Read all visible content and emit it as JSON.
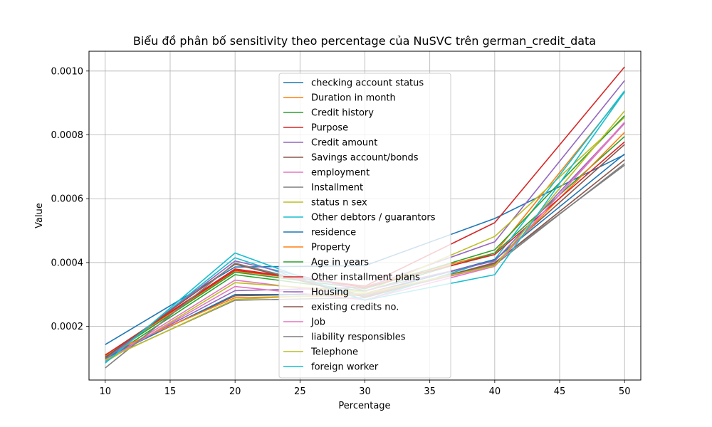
{
  "chart_data": {
    "type": "line",
    "title": "Biểu đồ phân bố sensitivity theo percentage của NuSVC trên german_credit_data",
    "xlabel": "Percentage",
    "ylabel": "Value",
    "x": [
      10,
      20,
      30,
      40,
      50
    ],
    "xlim": [
      8.75,
      51.25
    ],
    "ylim": [
      3.2e-05,
      0.001062
    ],
    "xticks": [
      10,
      15,
      20,
      25,
      30,
      35,
      40,
      45,
      50
    ],
    "yticks": [
      0.0002,
      0.0004,
      0.0006,
      0.0008,
      0.001
    ],
    "ytick_labels": [
      "0.0002",
      "0.0004",
      "0.0006",
      "0.0008",
      "0.0010"
    ],
    "grid": true,
    "legend_position": "upper center",
    "series": [
      {
        "name": "checking account status",
        "color": "#1f77b4",
        "values": [
          0.000143,
          0.000386,
          0.00039,
          0.000538,
          0.000738
        ]
      },
      {
        "name": "Duration in month",
        "color": "#ff7f0e",
        "values": [
          0.000107,
          0.000373,
          0.000326,
          0.00043,
          0.000934
        ]
      },
      {
        "name": "Credit history",
        "color": "#2ca02c",
        "values": [
          9.5e-05,
          0.000362,
          0.00031,
          0.00043,
          0.000795
        ]
      },
      {
        "name": "Purpose",
        "color": "#d62728",
        "values": [
          0.00011,
          0.000376,
          0.000326,
          0.000525,
          0.001013
        ]
      },
      {
        "name": "Credit amount",
        "color": "#9467bd",
        "values": [
          9.8e-05,
          0.000312,
          0.000322,
          0.000465,
          0.00097
        ]
      },
      {
        "name": "Savings account/bonds",
        "color": "#8c564b",
        "values": [
          0.000105,
          0.000296,
          0.000303,
          0.000407,
          0.00077
        ]
      },
      {
        "name": "employment",
        "color": "#e377c2",
        "values": [
          9.2e-05,
          0.000345,
          0.000295,
          0.00039,
          0.000836
        ]
      },
      {
        "name": " Installment",
        "color": "#7f7f7f",
        "values": [
          9.7e-05,
          0.000282,
          0.00029,
          0.0004,
          0.000705
        ]
      },
      {
        "name": "status n sex",
        "color": "#bcbd22",
        "values": [
          8.8e-05,
          0.000337,
          0.000308,
          0.000482,
          0.000855
        ]
      },
      {
        "name": " Other debtors / guarantors",
        "color": "#17becf",
        "values": [
          9e-05,
          0.000415,
          0.000282,
          0.00041,
          0.000938
        ]
      },
      {
        "name": "residence",
        "color": "#1f77b4",
        "values": [
          0.0001,
          0.0003,
          0.0003,
          0.00041,
          0.00074
        ]
      },
      {
        "name": "Property",
        "color": "#ff7f0e",
        "values": [
          0.000112,
          0.00029,
          0.000298,
          0.000395,
          0.000808
        ]
      },
      {
        "name": "Age in years",
        "color": "#2ca02c",
        "values": [
          0.000102,
          0.00037,
          0.000318,
          0.00044,
          0.00086
        ]
      },
      {
        "name": "Other installment plans",
        "color": "#d62728",
        "values": [
          0.00011,
          0.00038,
          0.000322,
          0.000425,
          0.000778
        ]
      },
      {
        "name": "Housing",
        "color": "#9467bd",
        "values": [
          9.6e-05,
          0.000405,
          0.000312,
          0.000405,
          0.000838
        ]
      },
      {
        "name": "existing credits no.",
        "color": "#8c564b",
        "values": [
          0.000103,
          0.000395,
          0.000292,
          0.000398,
          0.000722
        ]
      },
      {
        "name": "Job",
        "color": "#e377c2",
        "values": [
          9.3e-05,
          0.000325,
          0.000283,
          0.000388,
          0.00084
        ]
      },
      {
        "name": "liability responsibles",
        "color": "#7f7f7f",
        "values": [
          7e-05,
          0.000398,
          0.000296,
          0.000393,
          0.00071
        ]
      },
      {
        "name": "Telephone",
        "color": "#bcbd22",
        "values": [
          9.5e-05,
          0.000285,
          0.000303,
          0.00039,
          0.000875
        ]
      },
      {
        "name": "foreign worker",
        "color": "#17becf",
        "values": [
          8.5e-05,
          0.00043,
          0.000282,
          0.000362,
          0.000935
        ]
      }
    ]
  }
}
